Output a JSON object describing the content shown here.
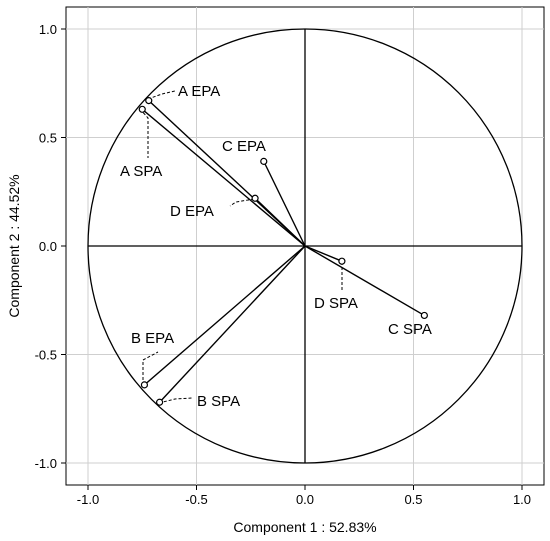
{
  "chart_data": {
    "type": "scatter",
    "title": "",
    "xlabel": "Component 1 : 52.83%",
    "ylabel": "Component 2 : 44.52%",
    "xlim": [
      -1.1,
      1.1
    ],
    "ylim": [
      -1.1,
      1.1
    ],
    "x_ticks": [
      "-1.0",
      "-0.5",
      "0.0",
      "0.5",
      "1.0"
    ],
    "y_ticks": [
      "1.0",
      "0.5",
      "0.0",
      "-0.5",
      "-1.0"
    ],
    "grid": true,
    "unit_circle": true,
    "points": [
      {
        "label": "A EPA",
        "x": -0.72,
        "y": 0.67
      },
      {
        "label": "A SPA",
        "x": -0.75,
        "y": 0.63
      },
      {
        "label": "C EPA",
        "x": -0.19,
        "y": 0.39
      },
      {
        "label": "D EPA",
        "x": -0.23,
        "y": 0.22
      },
      {
        "label": "D SPA",
        "x": 0.17,
        "y": -0.07
      },
      {
        "label": "C SPA",
        "x": 0.55,
        "y": -0.32
      },
      {
        "label": "B EPA",
        "x": -0.74,
        "y": -0.64
      },
      {
        "label": "B SPA",
        "x": -0.67,
        "y": -0.72
      }
    ]
  }
}
